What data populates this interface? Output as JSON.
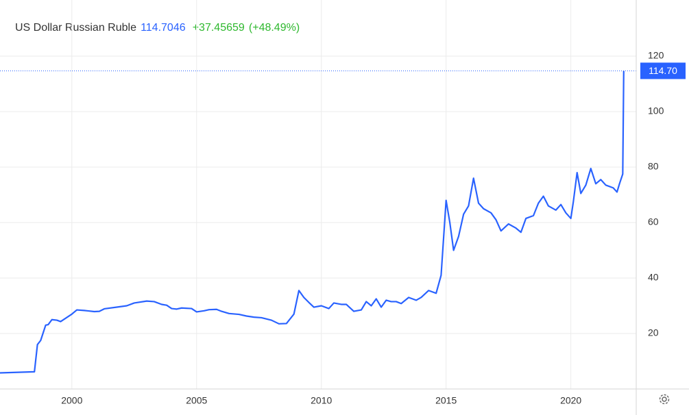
{
  "chart_data": {
    "type": "line",
    "title": "US Dollar Russian Ruble",
    "price": 114.7046,
    "change": "+37.45659",
    "change_pct": "(+48.49%)",
    "last_label": "114.70",
    "x": [
      1997.12,
      1998.5,
      1998.62,
      1998.75,
      1998.95,
      1999.05,
      1999.2,
      1999.4,
      1999.55,
      1999.7,
      2000.0,
      2000.2,
      2000.5,
      2000.9,
      2001.1,
      2001.3,
      2001.8,
      2002.2,
      2002.5,
      2003.0,
      2003.3,
      2003.6,
      2003.8,
      2004.0,
      2004.2,
      2004.4,
      2004.8,
      2005.0,
      2005.3,
      2005.5,
      2005.8,
      2006.0,
      2006.3,
      2006.7,
      2007.0,
      2007.3,
      2007.6,
      2008.0,
      2008.3,
      2008.6,
      2008.9,
      2009.1,
      2009.3,
      2009.5,
      2009.7,
      2010.0,
      2010.3,
      2010.5,
      2010.8,
      2011.0,
      2011.3,
      2011.6,
      2011.8,
      2012.0,
      2012.2,
      2012.4,
      2012.6,
      2012.8,
      2013.0,
      2013.2,
      2013.5,
      2013.8,
      2014.0,
      2014.3,
      2014.6,
      2014.8,
      2015.0,
      2015.15,
      2015.3,
      2015.5,
      2015.7,
      2015.9,
      2016.1,
      2016.3,
      2016.5,
      2016.8,
      2017.0,
      2017.2,
      2017.5,
      2017.8,
      2018.0,
      2018.2,
      2018.5,
      2018.7,
      2018.9,
      2019.1,
      2019.4,
      2019.6,
      2019.8,
      2020.0,
      2020.1,
      2020.25,
      2020.4,
      2020.6,
      2020.8,
      2021.0,
      2021.2,
      2021.4,
      2021.7,
      2021.85,
      2021.95,
      2022.08,
      2022.12
    ],
    "series": [
      {
        "name": "US Dollar Russian Ruble",
        "color": "#2962ff",
        "values": [
          5.8,
          6.2,
          16.0,
          17.5,
          23.0,
          23.2,
          25.0,
          24.8,
          24.3,
          25.2,
          27.0,
          28.5,
          28.3,
          27.9,
          28.0,
          28.9,
          29.5,
          30.0,
          31.0,
          31.7,
          31.5,
          30.5,
          30.2,
          29.0,
          28.8,
          29.2,
          29.0,
          27.8,
          28.2,
          28.6,
          28.7,
          28.0,
          27.2,
          26.9,
          26.3,
          25.9,
          25.7,
          24.8,
          23.5,
          23.6,
          27.0,
          35.5,
          33.0,
          31.2,
          29.5,
          30.0,
          29.0,
          31.0,
          30.5,
          30.5,
          28.0,
          28.5,
          31.5,
          30.0,
          32.5,
          29.5,
          32.0,
          31.5,
          31.5,
          30.8,
          33.0,
          32.0,
          33.0,
          35.5,
          34.5,
          41.0,
          68.0,
          60.0,
          50.0,
          55.0,
          63.0,
          66.0,
          76.0,
          67.0,
          65.0,
          63.5,
          61.0,
          57.0,
          59.5,
          58.0,
          56.5,
          61.5,
          62.5,
          67.0,
          69.5,
          66.0,
          64.5,
          66.5,
          63.5,
          61.5,
          67.5,
          78.0,
          70.5,
          73.5,
          79.5,
          74.0,
          75.5,
          73.5,
          72.5,
          71.0,
          74.0,
          77.5,
          114.7046
        ]
      }
    ],
    "xlim": [
      1997.12,
      2022.62
    ],
    "ylim": [
      0,
      140
    ],
    "xticks": [
      2000,
      2005,
      2010,
      2015,
      2020
    ],
    "yticks": [
      20,
      40,
      60,
      80,
      100,
      120
    ],
    "grid": true
  }
}
